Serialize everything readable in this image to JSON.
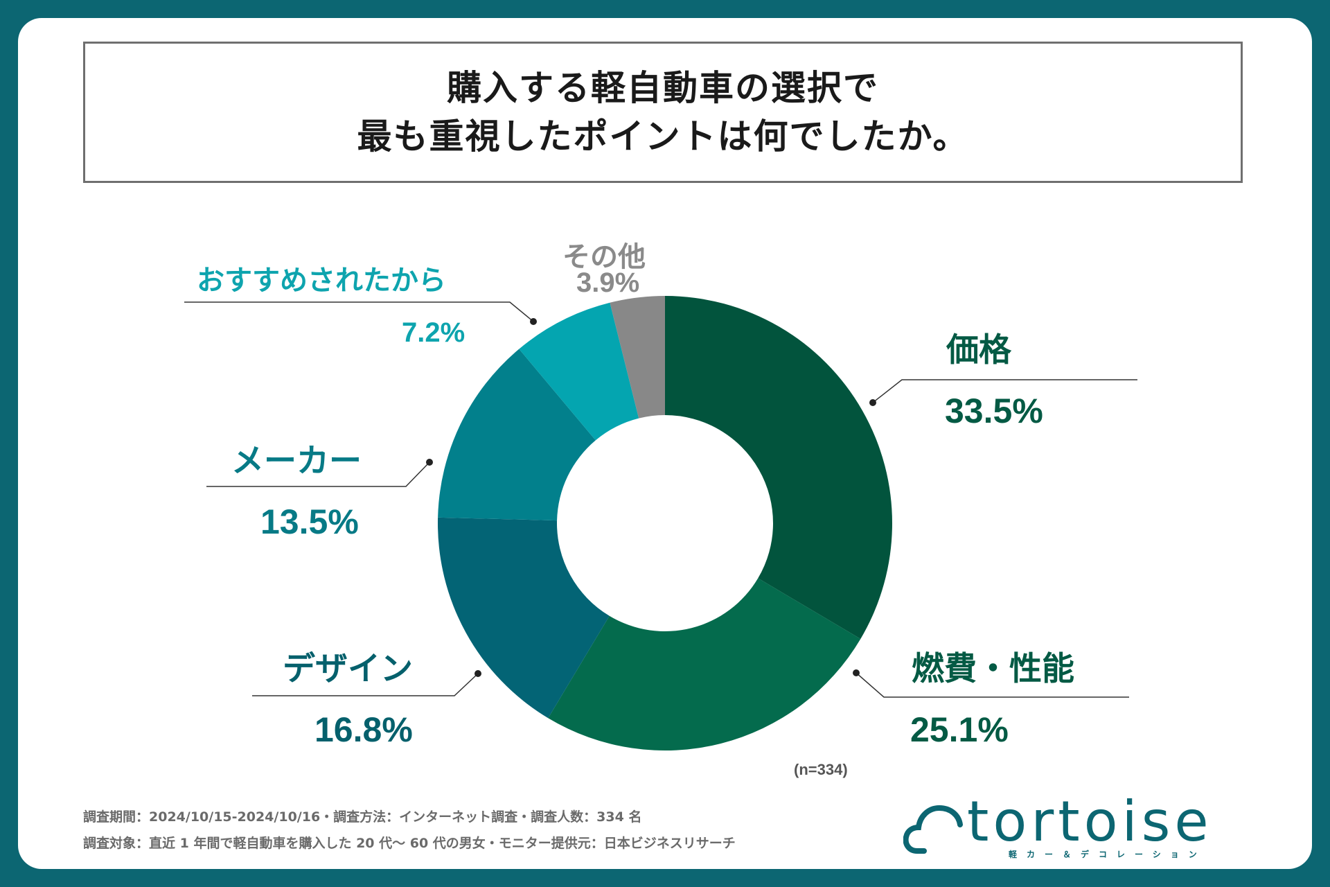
{
  "title": {
    "line1": "購入する軽自動車の選択で",
    "line2": "最も重視したポイントは何でしたか。"
  },
  "chart_data": {
    "type": "pie",
    "donut": true,
    "title": "購入する軽自動車の選択で最も重視したポイントは何でしたか。",
    "sample": "(n=334)",
    "categories": [
      "価格",
      "燃費・性能",
      "デザイン",
      "メーカー",
      "おすすめされたから",
      "その他"
    ],
    "values": [
      33.5,
      25.1,
      16.8,
      13.5,
      7.2,
      3.9
    ],
    "labels": [
      "33.5%",
      "25.1%",
      "16.8%",
      "13.5%",
      "7.2%",
      "3.9%"
    ],
    "colors": [
      "#02543d",
      "#046b4d",
      "#036475",
      "#02808c",
      "#04a5b0",
      "#888888"
    ],
    "text_colors": [
      "#045a44",
      "#045a44",
      "#05606c",
      "#077a86",
      "#0ea4ae",
      "#8a8a8a"
    ]
  },
  "footer": {
    "line1": "調査期間：2024/10/15-2024/10/16・調査方法：インターネット調査・調査人数：334 名",
    "line2": "調査対象：直近 1 年間で軽自動車を購入した 20 代～ 60 代の男女・モニター提供元：日本ビジネスリサーチ"
  },
  "logo": {
    "text": "tortoise",
    "subtitle": "軽カー＆デコレーション"
  }
}
